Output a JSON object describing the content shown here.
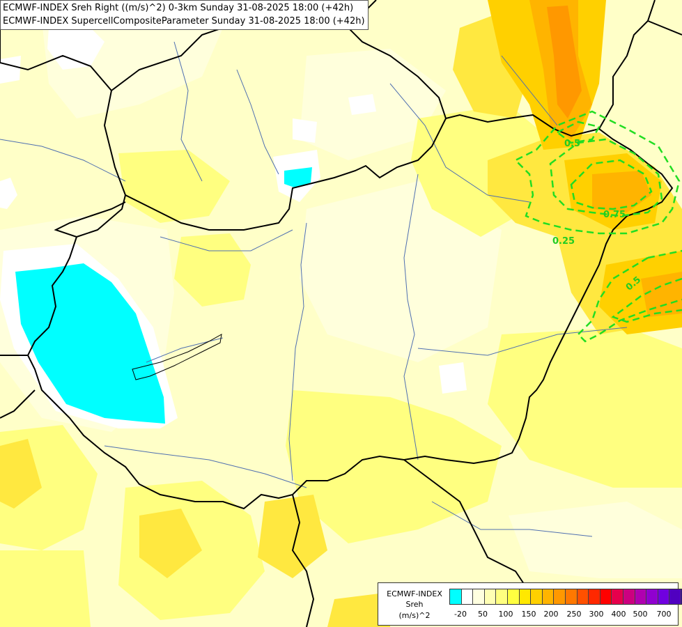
{
  "header": {
    "line1": "ECMWF-INDEX Sreh Right ((m/s)^2) 0-3km Sunday 31-08-2025 18:00 (+42h)",
    "line2": "ECMWF-INDEX SupercellCompositeParameter Sunday 31-08-2025 18:00 (+42h)"
  },
  "legend": {
    "title1": "ECMWF-INDEX",
    "title2": "Sreh",
    "unit": "(m/s)^2",
    "colors": [
      "#00ffff",
      "#ffffff",
      "#ffffe0",
      "#ffffb4",
      "#ffff80",
      "#ffff40",
      "#ffe800",
      "#ffd000",
      "#ffb400",
      "#ff9800",
      "#ff7800",
      "#ff5000",
      "#ff2800",
      "#ff0000",
      "#e6004c",
      "#cc0080",
      "#b000b0",
      "#9000d0",
      "#7000e0",
      "#5000c0",
      "#3000a0",
      "#100080"
    ],
    "ticks": [
      "-20",
      "50",
      "100",
      "150",
      "200",
      "250",
      "300",
      "400",
      "500",
      "700"
    ]
  },
  "contours": {
    "color": "#22dd22",
    "labels": [
      "0.25",
      "0.75",
      "0.5",
      "0.5"
    ]
  }
}
